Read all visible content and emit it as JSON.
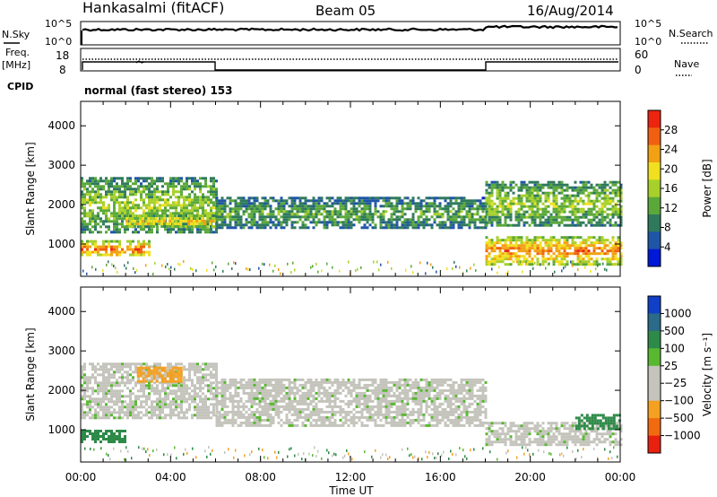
{
  "header": {
    "station": "Hankasalmi (fitACF)",
    "beam": "Beam 05",
    "date": "16/Aug/2014"
  },
  "top_panels": {
    "nsky_label": "N.Sky",
    "nsky_ticks": [
      "10^5",
      "10^0"
    ],
    "nsearch_label": "N.Search",
    "nsearch_ticks": [
      "10^5",
      "10^0"
    ],
    "freq_label_1": "Freq.",
    "freq_label_2": "[MHz]",
    "freq_ticks": [
      "18",
      "8"
    ],
    "nave_label": "Nave",
    "nave_ticks": [
      "60",
      "0"
    ],
    "cpid_label": "CPID",
    "cpid_text": "normal (fast stereo) 153"
  },
  "colors": {
    "power": [
      "#0018d8",
      "#1f55a6",
      "#2f7a5c",
      "#5aa83a",
      "#a8d02a",
      "#f0e020",
      "#f2a014",
      "#f06010",
      "#ec2410"
    ],
    "velocity": [
      "#e82010",
      "#f26a10",
      "#f4a020",
      "#c4c4bc",
      "#c4c4bc",
      "#58b830",
      "#2e8a48",
      "#2c6a8a",
      "#1040c8"
    ]
  },
  "chart_data": [
    {
      "type": "heatmap",
      "title": "Power",
      "ylabel": "Slant Range [km]",
      "xlabel": "Time UT",
      "x_ticks": [
        "00:00",
        "04:00",
        "08:00",
        "12:00",
        "16:00",
        "20:00",
        "00:00"
      ],
      "xlim_hours": [
        0,
        24
      ],
      "y_ticks": [
        "1000",
        "2000",
        "3000",
        "4000"
      ],
      "ylim": [
        180,
        4620
      ],
      "colorbar_label": "Power [dB]",
      "colorbar_ticks": [
        "4",
        "8",
        "12",
        "16",
        "20",
        "24",
        "28"
      ],
      "colorbar_range": [
        0,
        32
      ],
      "features": [
        {
          "hours": [
            0,
            3
          ],
          "range_km": [
            700,
            1100
          ],
          "level_db": 30
        },
        {
          "hours": [
            0,
            6
          ],
          "range_km": [
            1300,
            2700
          ],
          "level_db": 18
        },
        {
          "hours": [
            2,
            6
          ],
          "range_km": [
            1450,
            1750
          ],
          "level_db": 25
        },
        {
          "hours": [
            6,
            18
          ],
          "range_km": [
            1400,
            2200
          ],
          "level_db": 14
        },
        {
          "hours": [
            18,
            24
          ],
          "range_km": [
            500,
            1200
          ],
          "level_db": 29
        },
        {
          "hours": [
            18,
            24
          ],
          "range_km": [
            1500,
            2600
          ],
          "level_db": 18
        }
      ]
    },
    {
      "type": "heatmap",
      "title": "Velocity",
      "ylabel": "Slant Range [km]",
      "xlabel": "Time UT",
      "x_ticks": [
        "00:00",
        "04:00",
        "08:00",
        "12:00",
        "16:00",
        "20:00",
        "00:00"
      ],
      "xlim_hours": [
        0,
        24
      ],
      "y_ticks": [
        "1000",
        "2000",
        "3000",
        "4000"
      ],
      "ylim": [
        180,
        4620
      ],
      "colorbar_label": "Velocity [m s⁻¹]",
      "colorbar_ticks": [
        "1000",
        "500",
        "100",
        "25",
        "−25",
        "−100",
        "−500",
        "−1000"
      ],
      "features": [
        {
          "hours": [
            0,
            6
          ],
          "range_km": [
            1300,
            2700
          ],
          "velocity_ms": 0
        },
        {
          "hours": [
            2.5,
            4.5
          ],
          "range_km": [
            2200,
            2600
          ],
          "velocity_ms": -200
        },
        {
          "hours": [
            0,
            2
          ],
          "range_km": [
            700,
            1000
          ],
          "velocity_ms": 150
        },
        {
          "hours": [
            6,
            18
          ],
          "range_km": [
            1100,
            2300
          ],
          "velocity_ms": 0
        },
        {
          "hours": [
            18,
            24
          ],
          "range_km": [
            600,
            1200
          ],
          "velocity_ms": 0
        },
        {
          "hours": [
            22,
            24
          ],
          "range_km": [
            1000,
            1400
          ],
          "velocity_ms": 200
        }
      ]
    }
  ]
}
